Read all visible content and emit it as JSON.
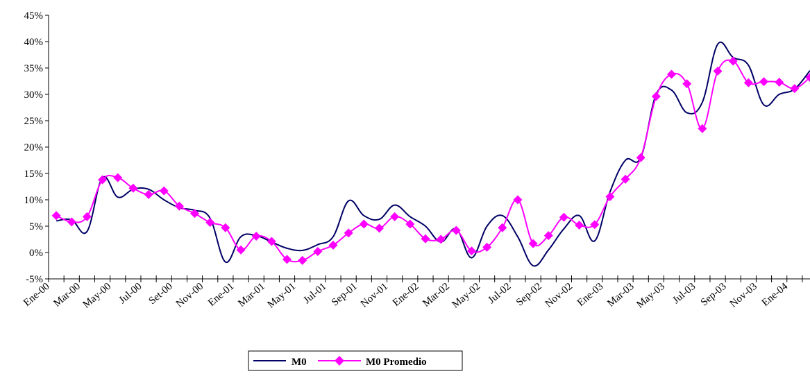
{
  "chart_data": {
    "type": "line",
    "title": "",
    "xlabel": "",
    "ylabel": "",
    "ylim": [
      -5,
      45
    ],
    "yticks": [
      "45%",
      "40%",
      "35%",
      "30%",
      "25%",
      "20%",
      "15%",
      "10%",
      "5%",
      "0%",
      "-5%"
    ],
    "ytick_values": [
      45,
      40,
      35,
      30,
      25,
      20,
      15,
      10,
      5,
      0,
      -5
    ],
    "categories": [
      "Ene-00",
      "Feb-00",
      "Mar-00",
      "Abr-00",
      "May-00",
      "Jun-00",
      "Jul-00",
      "Ago-00",
      "Set-00",
      "Oct-00",
      "Nov-00",
      "Dic-00",
      "Ene-01",
      "Feb-01",
      "Mar-01",
      "Abr-01",
      "May-01",
      "Jun-01",
      "Jul-01",
      "Ago-01",
      "Sep-01",
      "Oct-01",
      "Nov-01",
      "Dic-01",
      "Ene-02",
      "Feb-02",
      "Mar-02",
      "Abr-02",
      "May-02",
      "Jun-02",
      "Jul-02",
      "Ago-02",
      "Sep-02",
      "Oct-02",
      "Nov-02",
      "Dic-02",
      "Ene-03",
      "Feb-03",
      "Mar-03",
      "Abr-03",
      "May-03",
      "Jun-03",
      "Jul-03",
      "Ago-03",
      "Sep-03",
      "Oct-03",
      "Nov-03",
      "Dic-03",
      "Ene-04",
      "Feb-04"
    ],
    "xtick_labels": [
      "Ene-00",
      "Mar-00",
      "May-00",
      "Jul-00",
      "Set-00",
      "Nov-00",
      "Ene-01",
      "Mar-01",
      "May-01",
      "Jul-01",
      "Sep-01",
      "Nov-01",
      "Ene-02",
      "Mar-02",
      "May-02",
      "Jul-02",
      "Sep-02",
      "Nov-02",
      "Ene-03",
      "Mar-03",
      "May-03",
      "Jul-03",
      "Sep-03",
      "Nov-03",
      "Ene-04"
    ],
    "xtick_indices": [
      0,
      2,
      4,
      6,
      8,
      10,
      12,
      14,
      16,
      18,
      20,
      22,
      24,
      26,
      28,
      30,
      32,
      34,
      36,
      38,
      40,
      42,
      44,
      46,
      48
    ],
    "series": [
      {
        "name": "M0",
        "color": "#000066",
        "marker": "none",
        "values": [
          6.0,
          6.2,
          4.0,
          14.2,
          10.5,
          12.0,
          12.0,
          10.0,
          8.5,
          8.0,
          6.5,
          -1.8,
          3.0,
          3.2,
          2.0,
          0.8,
          0.4,
          1.5,
          3.0,
          9.8,
          7.0,
          6.3,
          9.0,
          6.8,
          5.0,
          2.0,
          4.5,
          -1.0,
          5.0,
          7.0,
          3.0,
          -2.5,
          0.5,
          4.5,
          7.0,
          2.2,
          11.5,
          17.5,
          18.0,
          30.0,
          30.8,
          26.5,
          28.5,
          39.5,
          37.0,
          35.5,
          28.0,
          30.0,
          31.0,
          34.5
        ]
      },
      {
        "name": "M0 Promedio",
        "color": "#ff00ff",
        "marker": "diamond",
        "values": [
          7.0,
          5.8,
          6.8,
          13.8,
          14.2,
          12.2,
          11.0,
          11.7,
          8.8,
          7.4,
          5.7,
          4.7,
          0.5,
          3.1,
          2.1,
          -1.3,
          -1.5,
          0.2,
          1.4,
          3.7,
          5.4,
          4.6,
          6.8,
          5.4,
          2.6,
          2.5,
          4.2,
          0.3,
          1.0,
          4.7,
          10.0,
          1.7,
          3.2,
          6.7,
          5.2,
          5.3,
          10.6,
          13.9,
          18.0,
          29.6,
          33.8,
          32.0,
          23.5,
          34.4,
          36.3,
          32.2,
          32.4,
          32.3,
          31.1,
          33.2
        ]
      }
    ],
    "legend": {
      "position": "bottom-center",
      "entries": [
        "M0",
        "M0 Promedio"
      ]
    },
    "grid": false
  }
}
